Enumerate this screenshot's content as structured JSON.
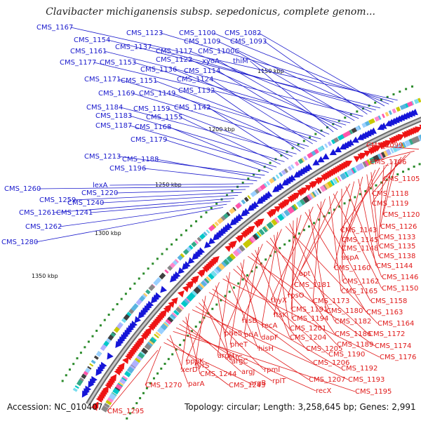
{
  "title": "Clavibacter michiganensis subsp. sepedonicus, complete genom...",
  "footer": {
    "accession": "Accession: NC_010407",
    "topology": "Topology: circular; Length: 3,258,645 bp; Genes: 2,991"
  },
  "colors": {
    "forward_label": "#1a1acc",
    "reverse_label": "#e01a1a",
    "backbone": "#8a8a8a",
    "forward_arrow": "#1515d8",
    "reverse_arrow": "#ee1414",
    "tick_mark": "#2a8a2a"
  },
  "ticks": [
    "1150 kbp",
    "1200 kbp",
    "1250 kbp",
    "1300 kbp",
    "1350 kbp"
  ],
  "forward_labels": [
    "CMS_1167",
    "CMS_1123",
    "CMS_1100",
    "CMS_1082",
    "CMS_1154",
    "CMS_1137",
    "CMS_1109",
    "CMS_1093",
    "CMS_1161",
    "CMS_1117",
    "CMS_1100C",
    "CMS_1177",
    "CMS_1153",
    "CMS_1122",
    "xyoA",
    "thiM",
    "CMS_1136",
    "CMS_1114",
    "CMS_1171",
    "CMS_1151",
    "CMS_1124",
    "CMS_1169",
    "CMS_1149",
    "CMS_1132",
    "CMS_1184",
    "CMS_1159",
    "CMS_1142",
    "CMS_1183",
    "CMS_1155",
    "CMS_1187",
    "CMS_1168",
    "CMS_1179",
    "CMS_1213",
    "CMS_1188",
    "CMS_1196",
    "lexA",
    "CMS_1260",
    "CMS_1220",
    "CMS_1259",
    "CMS_1240",
    "CMS_1261",
    "CMS_1241",
    "CMS_1262",
    "CMS_1280"
  ],
  "reverse_labels": [
    "CMS_1099",
    "CMS_1106",
    "CMS_1105",
    "CMS_1118",
    "CMS_1119",
    "CMS_1120",
    "CMS_1126",
    "CMS_1143",
    "CMS_1133",
    "CMS_1145",
    "CMS_1148",
    "CMS_1135",
    "CMS_1138",
    "aspA",
    "CMS_1144",
    "CMS_1160",
    "apt",
    "CMS_1146",
    "CMS_1162",
    "CMS_1181",
    "CMS_1150",
    "CMS_1165",
    "rpsO",
    "CMS_1173",
    "CMS_1158",
    "thyX",
    "CMS_1180",
    "CMS_1163",
    "ftsK",
    "CMS_1191",
    "CMS_1194",
    "CMS_1182",
    "CMS_1164",
    "hisB",
    "recA",
    "CMS_1201",
    "CMS_1186",
    "CMS_1172",
    "pheS",
    "priA",
    "CMS_1204",
    "CMS_1189",
    "CMS_1174",
    "pheT",
    "dapF",
    "CMS_1205",
    "CMS_1190",
    "argH",
    "hisH",
    "CMS_1176",
    "pppK",
    "infC",
    "CMS_1206",
    "CMS_1192",
    "tyrS",
    "argC",
    "rpmI",
    "CMS_1207",
    "CMS_1193",
    "xerD",
    "CMS_1244",
    "argJ",
    "rplT",
    "recX",
    "CMS_1195",
    "parA",
    "CMS_1243",
    "argB",
    "CMS_1270",
    "CMS_1295"
  ]
}
